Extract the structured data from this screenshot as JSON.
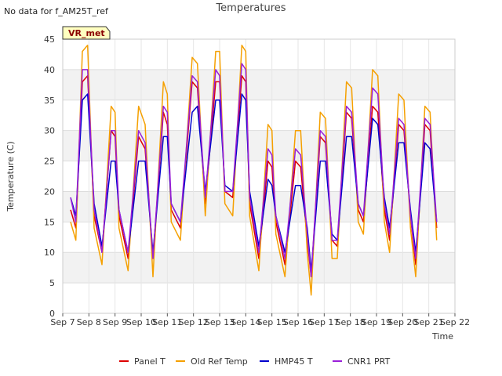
{
  "nodata_text": "No data for f_AM25T_ref",
  "badge_text": "VR_met",
  "colors": {
    "panel": "#dd0000",
    "oldref": "#f5a000",
    "hmp": "#0000cc",
    "cnr1": "#9a1fd8",
    "band": "#f2f2f2",
    "badge_bg": "#ffffc0",
    "badge_text": "#8b0000"
  },
  "chart_data": {
    "type": "line",
    "title": "Temperatures",
    "xlabel": "Time",
    "ylabel": "Temperature (C)",
    "ylim": [
      0,
      45
    ],
    "yticks": [
      0,
      5,
      10,
      15,
      20,
      25,
      30,
      35,
      40,
      45
    ],
    "xlim": [
      7,
      22
    ],
    "xtick_labels": [
      "Sep 7",
      "Sep 8",
      "Sep 9",
      "Sep 10",
      "Sep 11",
      "Sep 12",
      "Sep 13",
      "Sep 14",
      "Sep 15",
      "Sep 16",
      "Sep 17",
      "Sep 18",
      "Sep 19",
      "Sep 20",
      "Sep 21",
      "Sep 22"
    ],
    "grid": true,
    "legend": "bottom",
    "series": [
      {
        "name": "Panel T",
        "color_key": "panel",
        "x": [
          7.3,
          7.5,
          7.75,
          7.95,
          8.2,
          8.5,
          8.85,
          9.0,
          9.15,
          9.5,
          9.9,
          10.15,
          10.45,
          10.85,
          11.0,
          11.15,
          11.5,
          11.95,
          12.15,
          12.45,
          12.85,
          13.0,
          13.2,
          13.5,
          13.85,
          14.0,
          14.15,
          14.5,
          14.85,
          15.0,
          15.15,
          15.5,
          15.9,
          16.1,
          16.35,
          16.5,
          16.85,
          17.05,
          17.3,
          17.5,
          17.85,
          18.05,
          18.3,
          18.5,
          18.85,
          19.05,
          19.3,
          19.5,
          19.85,
          20.05,
          20.3,
          20.5,
          20.85,
          21.05,
          21.3
        ],
        "y": [
          17,
          14,
          38,
          39,
          16,
          10,
          30,
          29,
          16,
          9,
          29,
          27,
          9,
          33,
          31,
          17,
          14,
          38,
          37,
          18,
          38,
          38,
          20,
          19,
          39,
          38,
          18,
          9,
          25,
          24,
          15,
          8,
          25,
          24,
          12,
          6,
          29,
          28,
          12,
          11,
          33,
          32,
          17,
          15,
          34,
          33,
          17,
          12,
          31,
          30,
          16,
          8,
          31,
          30,
          14
        ]
      },
      {
        "name": "Old Ref Temp",
        "color_key": "oldref",
        "x": [
          7.3,
          7.5,
          7.75,
          7.95,
          8.2,
          8.5,
          8.85,
          9.0,
          9.15,
          9.5,
          9.9,
          10.15,
          10.45,
          10.85,
          11.0,
          11.15,
          11.5,
          11.95,
          12.15,
          12.45,
          12.85,
          13.0,
          13.2,
          13.5,
          13.85,
          14.0,
          14.15,
          14.5,
          14.85,
          15.0,
          15.15,
          15.5,
          15.9,
          16.1,
          16.35,
          16.5,
          16.85,
          17.05,
          17.3,
          17.5,
          17.85,
          18.05,
          18.3,
          18.5,
          18.85,
          19.05,
          19.3,
          19.5,
          19.85,
          20.05,
          20.3,
          20.5,
          20.85,
          21.05,
          21.3
        ],
        "y": [
          15,
          12,
          43,
          44,
          14,
          8,
          34,
          33,
          14,
          7,
          34,
          31,
          6,
          38,
          36,
          15,
          12,
          42,
          41,
          16,
          43,
          43,
          18,
          16,
          44,
          43,
          16,
          7,
          31,
          30,
          13,
          6,
          30,
          30,
          10,
          3,
          33,
          32,
          9,
          9,
          38,
          37,
          15,
          13,
          40,
          39,
          15,
          10,
          36,
          35,
          14,
          6,
          34,
          33,
          12
        ]
      },
      {
        "name": "HMP45 T",
        "color_key": "hmp",
        "x": [
          7.3,
          7.5,
          7.75,
          7.95,
          8.2,
          8.5,
          8.85,
          9.0,
          9.15,
          9.5,
          9.9,
          10.15,
          10.45,
          10.85,
          11.0,
          11.15,
          11.5,
          11.95,
          12.15,
          12.45,
          12.85,
          13.0,
          13.2,
          13.5,
          13.85,
          14.0,
          14.15,
          14.5,
          14.85,
          15.0,
          15.15,
          15.5,
          15.9,
          16.1,
          16.35,
          16.5,
          16.85,
          17.05,
          17.3,
          17.5,
          17.85,
          18.05,
          18.3,
          18.5,
          18.85,
          19.05,
          19.3,
          19.5,
          19.85,
          20.05,
          20.3,
          20.5,
          20.85,
          21.05,
          21.3
        ],
        "y": [
          19,
          16,
          35,
          36,
          18,
          11,
          25,
          25,
          17,
          10,
          25,
          25,
          10,
          29,
          29,
          18,
          15,
          33,
          34,
          20,
          35,
          35,
          21,
          20,
          36,
          35,
          20,
          11,
          22,
          21,
          16,
          10,
          21,
          21,
          14,
          7,
          25,
          25,
          13,
          12,
          29,
          29,
          18,
          16,
          32,
          31,
          19,
          14,
          28,
          28,
          17,
          10,
          28,
          27,
          15
        ]
      },
      {
        "name": "CNR1 PRT",
        "color_key": "cnr1",
        "x": [
          7.3,
          7.5,
          7.75,
          7.95,
          8.2,
          8.5,
          8.85,
          9.0,
          9.15,
          9.5,
          9.9,
          10.15,
          10.45,
          10.85,
          11.0,
          11.15,
          11.5,
          11.95,
          12.15,
          12.45,
          12.85,
          13.0,
          13.2,
          13.5,
          13.85,
          14.0,
          14.15,
          14.5,
          14.85,
          15.0,
          15.15,
          15.5,
          15.9,
          16.1,
          16.35,
          16.5,
          16.85,
          17.05,
          17.3,
          17.5,
          17.85,
          18.05,
          18.3,
          18.5,
          18.85,
          19.05,
          19.3,
          19.5,
          19.85,
          20.05,
          20.3,
          20.5,
          20.85,
          21.05,
          21.3
        ],
        "y": [
          19,
          15,
          40,
          40,
          17,
          10,
          30,
          30,
          17,
          10,
          30,
          28,
          9,
          34,
          33,
          18,
          15,
          39,
          38,
          19,
          40,
          39,
          20,
          20,
          41,
          40,
          19,
          10,
          27,
          26,
          16,
          9,
          27,
          26,
          13,
          6,
          30,
          29,
          12,
          12,
          34,
          33,
          18,
          16,
          37,
          36,
          18,
          13,
          32,
          31,
          16,
          9,
          32,
          31,
          15
        ]
      }
    ]
  }
}
